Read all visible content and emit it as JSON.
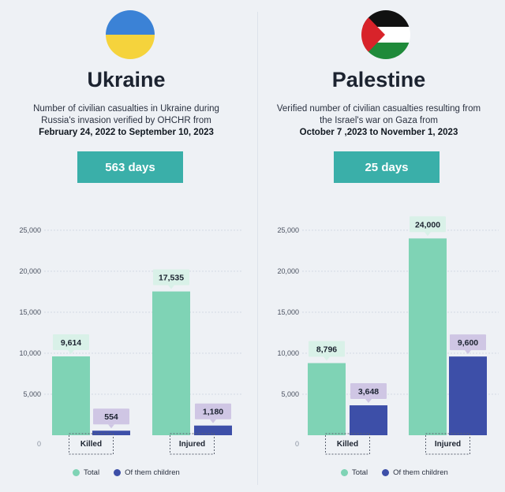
{
  "colors": {
    "total": "#7fd3b5",
    "children": "#3d4fa8",
    "total_label_bg": "#d9f1e8",
    "children_label_bg": "#cfc6e4",
    "days_bg": "#3aafa9"
  },
  "panels": [
    {
      "id": "ukraine",
      "flag_icon": "ukraine-flag-icon",
      "title": "Ukraine",
      "description": "Number of civilian casualties in Ukraine during Russia's invasion verified by OHCHR from",
      "date_range": "February 24, 2022 to September 10, 2023",
      "days_label": "563 days"
    },
    {
      "id": "palestine",
      "flag_icon": "palestine-flag-icon",
      "title": "Palestine",
      "description": "Verified number of civilian casualties resulting from the Israel's war on Gaza from",
      "date_range": "October 7 ,2023 to November 1, 2023",
      "days_label": "25 days"
    }
  ],
  "legend": {
    "total": "Total",
    "children": "Of them children"
  },
  "chart_data": [
    {
      "type": "bar",
      "categories": [
        "Killed",
        "Injured"
      ],
      "series": [
        {
          "name": "Total",
          "values": [
            9614,
            17535
          ],
          "labels": [
            "9,614",
            "17,535"
          ]
        },
        {
          "name": "Of them children",
          "values": [
            554,
            1180
          ],
          "labels": [
            "554",
            "1,180"
          ]
        }
      ],
      "ylim": [
        0,
        25000
      ],
      "yticks": [
        5000,
        10000,
        15000,
        20000,
        25000
      ],
      "ytick_labels": [
        "5,000",
        "10,000",
        "15,000",
        "20,000",
        "25,000"
      ],
      "zero_label": "0",
      "grid": true
    },
    {
      "type": "bar",
      "categories": [
        "Killed",
        "Injured"
      ],
      "series": [
        {
          "name": "Total",
          "values": [
            8796,
            24000
          ],
          "labels": [
            "8,796",
            "24,000"
          ]
        },
        {
          "name": "Of them children",
          "values": [
            3648,
            9600
          ],
          "labels": [
            "3,648",
            "9,600"
          ]
        }
      ],
      "ylim": [
        0,
        25000
      ],
      "yticks": [
        5000,
        10000,
        15000,
        20000,
        25000
      ],
      "ytick_labels": [
        "5,000",
        "10,000",
        "15,000",
        "20,000",
        "25,000"
      ],
      "zero_label": "0",
      "grid": true
    }
  ]
}
